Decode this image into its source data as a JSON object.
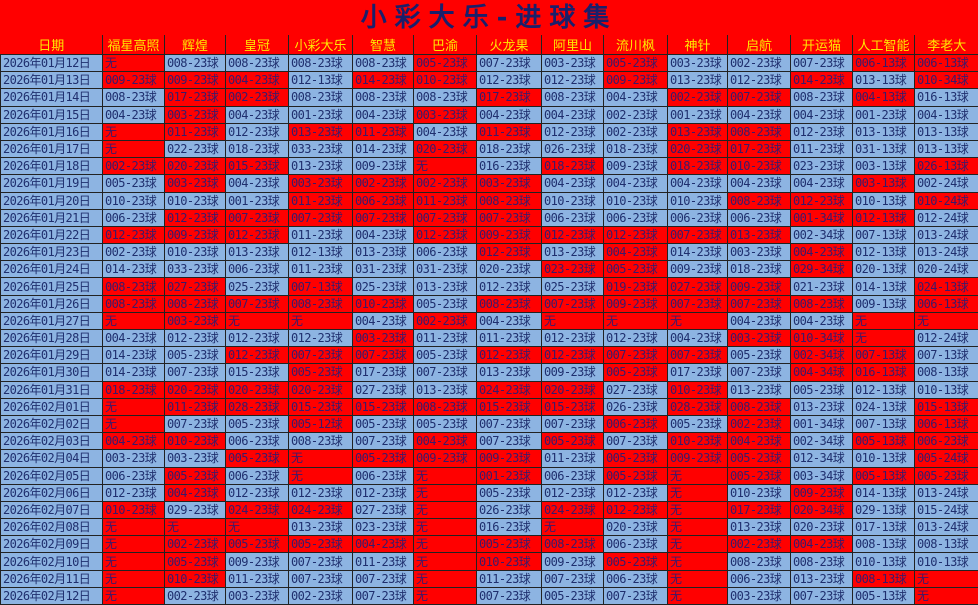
{
  "title": "小彩大乐-进球集",
  "colors": {
    "highlight": "#ff0000",
    "normal": "#8db4e2",
    "header_text": "#ffe800",
    "text": "#1f2f6e"
  },
  "columns": [
    "日期",
    "福星高照",
    "辉煌",
    "皇冠",
    "小彩大乐",
    "智慧",
    "巴渝",
    "火龙果",
    "阿里山",
    "流川枫",
    "神针",
    "启航",
    "开运猫",
    "人工智能",
    "李老大"
  ],
  "rows": [
    {
      "date": "2026年01月12日",
      "values": [
        "无",
        "008-23球",
        "008-23球",
        "008-23球",
        "008-23球",
        "005-23球",
        "007-23球",
        "003-23球",
        "005-23球",
        "003-23球",
        "002-23球",
        "007-23球",
        "006-13球",
        "006-13球"
      ],
      "red": [
        1,
        0,
        0,
        0,
        0,
        1,
        0,
        0,
        1,
        0,
        0,
        0,
        1,
        1
      ]
    },
    {
      "date": "2026年01月13日",
      "values": [
        "009-23球",
        "009-23球",
        "004-23球",
        "012-13球",
        "014-23球",
        "010-23球",
        "012-23球",
        "012-23球",
        "009-23球",
        "013-23球",
        "012-23球",
        "014-23球",
        "013-13球",
        "010-34球"
      ],
      "red": [
        1,
        1,
        1,
        0,
        1,
        1,
        0,
        0,
        1,
        0,
        0,
        1,
        0,
        1
      ]
    },
    {
      "date": "2026年01月14日",
      "values": [
        "008-23球",
        "017-23球",
        "002-23球",
        "008-23球",
        "008-23球",
        "008-23球",
        "017-23球",
        "008-23球",
        "004-23球",
        "002-23球",
        "007-23球",
        "008-23球",
        "004-13球",
        "016-13球"
      ],
      "red": [
        0,
        1,
        1,
        0,
        0,
        0,
        1,
        0,
        0,
        1,
        1,
        0,
        1,
        0
      ]
    },
    {
      "date": "2026年01月15日",
      "values": [
        "004-23球",
        "003-23球",
        "004-23球",
        "001-23球",
        "004-23球",
        "003-23球",
        "004-23球",
        "004-23球",
        "002-23球",
        "001-23球",
        "004-23球",
        "004-23球",
        "001-23球",
        "004-13球"
      ],
      "red": [
        0,
        1,
        0,
        0,
        0,
        1,
        0,
        0,
        0,
        0,
        0,
        0,
        0,
        0
      ]
    },
    {
      "date": "2026年01月16日",
      "values": [
        "无",
        "011-23球",
        "012-23球",
        "013-23球",
        "011-23球",
        "004-23球",
        "011-23球",
        "012-23球",
        "002-23球",
        "013-23球",
        "008-23球",
        "012-23球",
        "013-13球",
        "013-13球"
      ],
      "red": [
        1,
        1,
        0,
        1,
        1,
        0,
        1,
        0,
        0,
        1,
        1,
        0,
        0,
        0
      ]
    },
    {
      "date": "2026年01月17日",
      "values": [
        "无",
        "022-23球",
        "018-23球",
        "033-23球",
        "014-23球",
        "020-23球",
        "018-23球",
        "026-23球",
        "018-23球",
        "020-23球",
        "017-23球",
        "011-23球",
        "031-13球",
        "013-13球"
      ],
      "red": [
        1,
        0,
        0,
        0,
        0,
        1,
        0,
        0,
        0,
        1,
        1,
        0,
        0,
        0
      ]
    },
    {
      "date": "2026年01月18日",
      "values": [
        "002-23球",
        "020-23球",
        "015-23球",
        "013-23球",
        "009-23球",
        "无",
        "016-23球",
        "018-23球",
        "009-23球",
        "018-23球",
        "010-23球",
        "023-23球",
        "003-13球",
        "026-13球"
      ],
      "red": [
        1,
        1,
        1,
        0,
        0,
        1,
        0,
        1,
        0,
        1,
        1,
        0,
        0,
        1
      ]
    },
    {
      "date": "2026年01月19日",
      "values": [
        "005-23球",
        "003-23球",
        "004-23球",
        "003-23球",
        "002-23球",
        "002-23球",
        "003-23球",
        "004-23球",
        "004-23球",
        "004-23球",
        "004-23球",
        "004-23球",
        "003-13球",
        "002-24球"
      ],
      "red": [
        0,
        1,
        0,
        1,
        1,
        1,
        1,
        0,
        0,
        0,
        0,
        0,
        1,
        0
      ]
    },
    {
      "date": "2026年01月20日",
      "values": [
        "010-23球",
        "010-23球",
        "001-23球",
        "011-23球",
        "006-23球",
        "011-23球",
        "008-23球",
        "010-23球",
        "010-23球",
        "010-23球",
        "008-23球",
        "012-23球",
        "010-13球",
        "010-24球"
      ],
      "red": [
        0,
        0,
        0,
        1,
        1,
        1,
        1,
        0,
        0,
        0,
        1,
        1,
        0,
        1
      ]
    },
    {
      "date": "2026年01月21日",
      "values": [
        "006-23球",
        "012-23球",
        "007-23球",
        "007-23球",
        "007-23球",
        "007-23球",
        "007-23球",
        "006-23球",
        "006-23球",
        "006-23球",
        "006-23球",
        "001-34球",
        "012-13球",
        "012-24球"
      ],
      "red": [
        0,
        1,
        1,
        1,
        1,
        1,
        1,
        0,
        0,
        0,
        0,
        1,
        1,
        0
      ]
    },
    {
      "date": "2026年01月22日",
      "values": [
        "012-23球",
        "009-23球",
        "012-23球",
        "011-23球",
        "004-23球",
        "012-23球",
        "009-23球",
        "012-23球",
        "012-23球",
        "007-23球",
        "013-23球",
        "002-34球",
        "007-13球",
        "013-24球"
      ],
      "red": [
        1,
        1,
        1,
        0,
        0,
        1,
        1,
        1,
        1,
        1,
        1,
        0,
        0,
        0
      ]
    },
    {
      "date": "2026年01月23日",
      "values": [
        "002-23球",
        "010-23球",
        "013-23球",
        "012-13球",
        "013-23球",
        "006-23球",
        "012-23球",
        "013-23球",
        "004-23球",
        "014-23球",
        "003-23球",
        "004-23球",
        "012-13球",
        "013-24球"
      ],
      "red": [
        0,
        0,
        0,
        0,
        0,
        0,
        1,
        0,
        1,
        0,
        0,
        1,
        0,
        0
      ]
    },
    {
      "date": "2026年01月24日",
      "values": [
        "014-23球",
        "033-23球",
        "006-23球",
        "011-23球",
        "031-23球",
        "031-23球",
        "020-23球",
        "023-23球",
        "005-23球",
        "009-23球",
        "018-23球",
        "029-34球",
        "020-13球",
        "020-24球"
      ],
      "red": [
        0,
        0,
        0,
        0,
        0,
        0,
        0,
        1,
        1,
        0,
        0,
        1,
        0,
        0
      ]
    },
    {
      "date": "2026年01月25日",
      "values": [
        "008-23球",
        "027-23球",
        "025-23球",
        "007-13球",
        "025-23球",
        "013-23球",
        "012-23球",
        "025-23球",
        "019-23球",
        "027-23球",
        "009-23球",
        "021-23球",
        "014-13球",
        "024-13球"
      ],
      "red": [
        1,
        1,
        0,
        1,
        0,
        0,
        0,
        0,
        1,
        1,
        1,
        0,
        0,
        1
      ]
    },
    {
      "date": "2026年01月26日",
      "values": [
        "008-23球",
        "008-23球",
        "007-23球",
        "008-23球",
        "010-23球",
        "005-23球",
        "008-23球",
        "007-23球",
        "009-23球",
        "007-23球",
        "007-23球",
        "008-23球",
        "009-13球",
        "006-13球"
      ],
      "red": [
        1,
        1,
        1,
        1,
        1,
        0,
        1,
        1,
        1,
        1,
        1,
        1,
        0,
        1
      ]
    },
    {
      "date": "2026年01月27日",
      "values": [
        "无",
        "003-23球",
        "无",
        "无",
        "004-23球",
        "002-23球",
        "004-23球",
        "无",
        "无",
        "无",
        "004-23球",
        "004-23球",
        "无",
        "无"
      ],
      "red": [
        1,
        1,
        1,
        1,
        0,
        1,
        0,
        1,
        1,
        1,
        0,
        0,
        1,
        1
      ]
    },
    {
      "date": "2026年01月28日",
      "values": [
        "004-23球",
        "012-23球",
        "012-23球",
        "012-23球",
        "003-23球",
        "011-23球",
        "011-23球",
        "012-23球",
        "012-23球",
        "004-23球",
        "003-23球",
        "010-34球",
        "无",
        "012-24球"
      ],
      "red": [
        0,
        0,
        0,
        0,
        1,
        0,
        0,
        0,
        0,
        0,
        1,
        1,
        1,
        0
      ]
    },
    {
      "date": "2026年01月29日",
      "values": [
        "014-23球",
        "005-23球",
        "012-23球",
        "007-23球",
        "007-23球",
        "005-23球",
        "012-23球",
        "012-23球",
        "007-23球",
        "007-23球",
        "005-23球",
        "002-34球",
        "007-13球",
        "007-13球"
      ],
      "red": [
        0,
        0,
        1,
        1,
        1,
        0,
        1,
        1,
        1,
        1,
        0,
        1,
        1,
        0
      ]
    },
    {
      "date": "2026年01月30日",
      "values": [
        "014-23球",
        "007-23球",
        "015-23球",
        "005-23球",
        "017-23球",
        "007-23球",
        "013-23球",
        "009-23球",
        "005-23球",
        "017-23球",
        "007-23球",
        "004-34球",
        "016-13球",
        "008-13球"
      ],
      "red": [
        0,
        0,
        0,
        1,
        0,
        0,
        0,
        0,
        1,
        0,
        0,
        1,
        1,
        0
      ]
    },
    {
      "date": "2026年01月31日",
      "values": [
        "018-23球",
        "020-23球",
        "020-23球",
        "020-23球",
        "027-23球",
        "013-23球",
        "024-23球",
        "020-23球",
        "027-23球",
        "010-23球",
        "013-23球",
        "005-23球",
        "012-13球",
        "010-13球"
      ],
      "red": [
        1,
        1,
        1,
        1,
        0,
        0,
        1,
        1,
        0,
        1,
        0,
        0,
        0,
        0
      ]
    },
    {
      "date": "2026年02月01日",
      "values": [
        "无",
        "011-23球",
        "028-23球",
        "015-23球",
        "015-23球",
        "008-23球",
        "015-23球",
        "015-23球",
        "026-23球",
        "028-23球",
        "008-23球",
        "013-23球",
        "024-13球",
        "015-13球"
      ],
      "red": [
        1,
        1,
        1,
        1,
        1,
        1,
        1,
        1,
        0,
        1,
        1,
        0,
        0,
        1
      ]
    },
    {
      "date": "2026年02月02日",
      "values": [
        "无",
        "007-23球",
        "005-23球",
        "005-12球",
        "005-23球",
        "005-23球",
        "007-23球",
        "007-23球",
        "006-23球",
        "005-23球",
        "002-23球",
        "001-34球",
        "007-13球",
        "006-13球"
      ],
      "red": [
        1,
        0,
        0,
        1,
        0,
        0,
        0,
        0,
        1,
        0,
        1,
        0,
        0,
        1
      ]
    },
    {
      "date": "2026年02月03日",
      "values": [
        "004-23球",
        "010-23球",
        "006-23球",
        "008-23球",
        "007-23球",
        "004-23球",
        "007-23球",
        "005-23球",
        "007-23球",
        "010-23球",
        "004-23球",
        "002-34球",
        "005-13球",
        "006-23球"
      ],
      "red": [
        1,
        1,
        0,
        0,
        0,
        1,
        0,
        1,
        0,
        1,
        1,
        0,
        1,
        1
      ]
    },
    {
      "date": "2026年02月04日",
      "values": [
        "003-23球",
        "003-23球",
        "005-23球",
        "无",
        "005-23球",
        "009-23球",
        "009-23球",
        "011-23球",
        "005-23球",
        "009-23球",
        "005-23球",
        "012-34球",
        "010-13球",
        "005-24球"
      ],
      "red": [
        0,
        0,
        1,
        1,
        1,
        1,
        1,
        0,
        1,
        1,
        1,
        0,
        0,
        1
      ]
    },
    {
      "date": "2026年02月05日",
      "values": [
        "006-23球",
        "005-23球",
        "006-23球",
        "无",
        "006-23球",
        "无",
        "001-23球",
        "006-23球",
        "005-23球",
        "无",
        "005-23球",
        "003-34球",
        "005-13球",
        "005-23球"
      ],
      "red": [
        0,
        1,
        0,
        1,
        0,
        1,
        1,
        0,
        1,
        1,
        1,
        0,
        1,
        1
      ]
    },
    {
      "date": "2026年02月06日",
      "values": [
        "012-23球",
        "004-23球",
        "012-23球",
        "012-23球",
        "012-23球",
        "无",
        "005-23球",
        "012-23球",
        "012-23球",
        "无",
        "010-23球",
        "009-23球",
        "014-13球",
        "013-24球"
      ],
      "red": [
        0,
        1,
        0,
        0,
        0,
        1,
        0,
        0,
        0,
        1,
        0,
        1,
        0,
        0
      ]
    },
    {
      "date": "2026年02月07日",
      "values": [
        "010-23球",
        "029-23球",
        "024-23球",
        "024-23球",
        "027-23球",
        "无",
        "026-23球",
        "024-23球",
        "012-23球",
        "无",
        "017-23球",
        "020-34球",
        "029-13球",
        "015-24球"
      ],
      "red": [
        1,
        0,
        1,
        1,
        0,
        1,
        0,
        1,
        1,
        1,
        1,
        1,
        0,
        0
      ]
    },
    {
      "date": "2026年02月08日",
      "values": [
        "无",
        "无",
        "无",
        "013-23球",
        "023-23球",
        "无",
        "016-23球",
        "无",
        "020-23球",
        "无",
        "013-23球",
        "020-23球",
        "017-13球",
        "013-24球"
      ],
      "red": [
        1,
        1,
        1,
        0,
        0,
        1,
        0,
        1,
        0,
        1,
        0,
        0,
        0,
        0
      ]
    },
    {
      "date": "2026年02月09日",
      "values": [
        "无",
        "002-23球",
        "005-23球",
        "005-23球",
        "004-23球",
        "无",
        "005-23球",
        "008-23球",
        "006-23球",
        "无",
        "002-23球",
        "004-23球",
        "008-13球",
        "008-13球"
      ],
      "red": [
        1,
        1,
        1,
        1,
        1,
        1,
        1,
        1,
        0,
        1,
        1,
        1,
        0,
        0
      ]
    },
    {
      "date": "2026年02月10日",
      "values": [
        "无",
        "005-23球",
        "009-23球",
        "007-23球",
        "011-23球",
        "无",
        "010-23球",
        "009-23球",
        "005-23球",
        "无",
        "008-23球",
        "008-23球",
        "010-13球",
        "010-13球"
      ],
      "red": [
        1,
        1,
        0,
        0,
        0,
        1,
        1,
        0,
        1,
        1,
        0,
        0,
        0,
        0
      ]
    },
    {
      "date": "2026年02月11日",
      "values": [
        "无",
        "010-23球",
        "011-23球",
        "007-23球",
        "007-23球",
        "无",
        "011-23球",
        "007-23球",
        "006-23球",
        "无",
        "006-23球",
        "013-23球",
        "008-13球",
        "无"
      ],
      "red": [
        1,
        1,
        0,
        0,
        0,
        1,
        0,
        0,
        0,
        1,
        0,
        0,
        1,
        1
      ]
    },
    {
      "date": "2026年02月12日",
      "values": [
        "无",
        "002-23球",
        "003-23球",
        "002-23球",
        "007-23球",
        "无",
        "007-23球",
        "005-23球",
        "007-23球",
        "无",
        "003-23球",
        "007-23球",
        "005-13球",
        "无"
      ],
      "red": [
        1,
        0,
        0,
        0,
        0,
        1,
        0,
        0,
        0,
        1,
        0,
        0,
        0,
        1
      ]
    }
  ]
}
